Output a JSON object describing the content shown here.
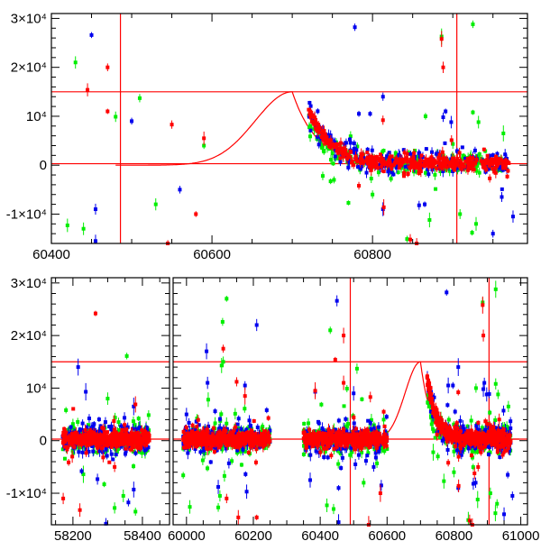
{
  "chart_data": [
    {
      "type": "scatter",
      "title": "",
      "xlabel": "",
      "ylabel": "",
      "xlim": [
        60400,
        60993
      ],
      "ylim": [
        -16000,
        31000
      ],
      "x_ticks": [
        {
          "v": 60400,
          "label": "60400"
        },
        {
          "v": 60600,
          "label": "60600"
        },
        {
          "v": 60800,
          "label": "60800"
        }
      ],
      "y_ticks": [
        {
          "v": 30000,
          "label": "3×10⁴"
        },
        {
          "v": 20000,
          "label": "2×10⁴"
        },
        {
          "v": 10000,
          "label": "10⁴"
        },
        {
          "v": 0,
          "label": "0"
        },
        {
          "v": -10000,
          "label": "-1×10⁴"
        }
      ],
      "hlines": [
        15000,
        300
      ],
      "vlines": [
        60486,
        60905
      ],
      "model": {
        "peak_x": 60700,
        "peak_y": 15000,
        "start_x": 60480,
        "rise_sigma": 46,
        "decay_tau": 30,
        "baseline": 300
      },
      "dense_ranges": [
        [
          60720,
          60970
        ]
      ]
    },
    {
      "type": "scatter",
      "title": "",
      "xlabel": "",
      "ylabel": "",
      "broken_axis_segments": [
        {
          "xlim": [
            58138,
            58478
          ]
        },
        {
          "xlim": [
            59960,
            61020
          ]
        }
      ],
      "ylim": [
        -16000,
        31000
      ],
      "x_ticks": [
        {
          "v": 58200,
          "label": "58200"
        },
        {
          "v": 58400,
          "label": "58400"
        },
        {
          "v": 60000,
          "label": "60000"
        },
        {
          "v": 60200,
          "label": "60200"
        },
        {
          "v": 60400,
          "label": "60400"
        },
        {
          "v": 60600,
          "label": "60600"
        },
        {
          "v": 60800,
          "label": "60800"
        },
        {
          "v": 61000,
          "label": "61000"
        }
      ],
      "y_ticks": [
        {
          "v": 30000,
          "label": "3×10⁴"
        },
        {
          "v": 20000,
          "label": "2×10⁴"
        },
        {
          "v": 10000,
          "label": "10⁴"
        },
        {
          "v": 0,
          "label": "0"
        },
        {
          "v": -10000,
          "label": "-1×10⁴"
        }
      ],
      "hlines": [
        15000,
        300
      ],
      "vlines": [
        60490,
        60905
      ],
      "model": {
        "peak_x": 60700,
        "peak_y": 15000,
        "start_x": 60600,
        "rise_sigma": 46,
        "decay_tau": 30,
        "baseline": 300
      },
      "dense_ranges": [
        [
          58170,
          58420
        ],
        [
          59990,
          60250
        ],
        [
          60350,
          60600
        ],
        [
          60720,
          60970
        ]
      ]
    }
  ],
  "series": [
    {
      "name": "green",
      "color": "#00ee00",
      "outliers": [
        [
          60925,
          28800
        ],
        [
          60886,
          26300
        ],
        [
          60925,
          10800
        ],
        [
          60963,
          6500
        ],
        [
          60932,
          8800
        ],
        [
          60866,
          10000
        ],
        [
          60770,
          -7700
        ],
        [
          60800,
          -6000
        ],
        [
          60843,
          -15100
        ],
        [
          60871,
          -11200
        ],
        [
          60924,
          -13800
        ],
        [
          60929,
          -12000
        ],
        [
          60909,
          -10000
        ],
        [
          60738,
          -2200
        ],
        [
          60752,
          -3000
        ],
        [
          58355,
          16100
        ],
        [
          58300,
          8000
        ],
        [
          58320,
          -12800
        ],
        [
          58345,
          -10500
        ],
        [
          58380,
          -13500
        ],
        [
          58290,
          -8300
        ],
        [
          58180,
          5800
        ],
        [
          58230,
          -6400
        ],
        [
          60120,
          27000
        ],
        [
          60108,
          22600
        ],
        [
          60110,
          15000
        ],
        [
          60105,
          14300
        ],
        [
          60095,
          -12700
        ],
        [
          60010,
          -12600
        ],
        [
          60100,
          -10500
        ],
        [
          60065,
          7800
        ],
        [
          60430,
          21000
        ],
        [
          60510,
          13700
        ],
        [
          60420,
          -12300
        ],
        [
          60440,
          -13000
        ],
        [
          60530,
          -8000
        ],
        [
          60590,
          4000
        ],
        [
          60480,
          9900
        ]
      ]
    },
    {
      "name": "blue",
      "color": "#0000ee",
      "outliers": [
        [
          60778,
          28200
        ],
        [
          60813,
          14000
        ],
        [
          60783,
          10500
        ],
        [
          60797,
          10500
        ],
        [
          60891,
          11000
        ],
        [
          60898,
          8800
        ],
        [
          60888,
          9800
        ],
        [
          60975,
          -10500
        ],
        [
          60950,
          -14000
        ],
        [
          60961,
          -6500
        ],
        [
          60813,
          -9000
        ],
        [
          60865,
          -8000
        ],
        [
          60858,
          -8200
        ],
        [
          58215,
          14000
        ],
        [
          58237,
          9300
        ],
        [
          58295,
          -15800
        ],
        [
          58375,
          -9300
        ],
        [
          58375,
          6500
        ],
        [
          58225,
          -5800
        ],
        [
          60210,
          22000
        ],
        [
          60060,
          17000
        ],
        [
          60063,
          11000
        ],
        [
          60175,
          10500
        ],
        [
          60240,
          5800
        ],
        [
          60180,
          -9700
        ],
        [
          60095,
          -8800
        ],
        [
          60000,
          5000
        ],
        [
          60450,
          26600
        ],
        [
          60385,
          9300
        ],
        [
          60455,
          -15500
        ],
        [
          60370,
          -7500
        ],
        [
          60500,
          9000
        ],
        [
          60455,
          -9000
        ],
        [
          60560,
          -5000
        ]
      ]
    },
    {
      "name": "red",
      "color": "#ff0000",
      "outliers": [
        [
          60886,
          25800
        ],
        [
          60888,
          20000
        ],
        [
          60813,
          9200
        ],
        [
          60783,
          -4200
        ],
        [
          60814,
          -8600
        ],
        [
          60847,
          -15200
        ],
        [
          60855,
          -16000
        ],
        [
          60946,
          -2700
        ],
        [
          58265,
          24200
        ],
        [
          58172,
          -11000
        ],
        [
          58220,
          -13200
        ],
        [
          58380,
          6900
        ],
        [
          58320,
          -5000
        ],
        [
          60110,
          17500
        ],
        [
          60150,
          11200
        ],
        [
          60175,
          8500
        ],
        [
          60120,
          -11000
        ],
        [
          60155,
          -14600
        ],
        [
          60210,
          -14600
        ],
        [
          60245,
          4300
        ],
        [
          60470,
          20000
        ],
        [
          60445,
          15400
        ],
        [
          60470,
          11000
        ],
        [
          60385,
          9500
        ],
        [
          60550,
          8300
        ],
        [
          60580,
          -10000
        ],
        [
          60545,
          -16000
        ],
        [
          60590,
          5500
        ]
      ]
    }
  ]
}
